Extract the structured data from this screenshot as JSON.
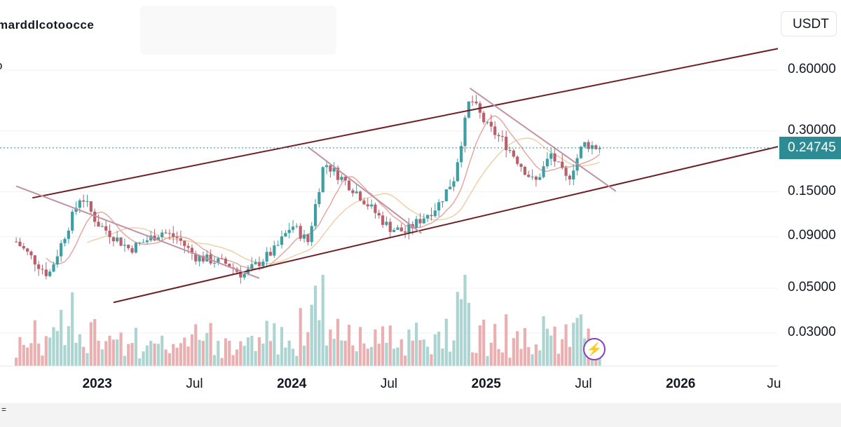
{
  "header": {
    "symbol": "marddlcotoocce",
    "sub_label": "o",
    "currency": "USDT"
  },
  "last_price": "0.24745",
  "y_ticks": [
    "0.60000",
    "0.30000",
    "0.15000",
    "0.09000",
    "0.05000",
    "0.03000"
  ],
  "x_ticks": [
    {
      "label": "2023",
      "year": true
    },
    {
      "label": "Jul",
      "year": false
    },
    {
      "label": "2024",
      "year": true
    },
    {
      "label": "Jul",
      "year": false
    },
    {
      "label": "2025",
      "year": true
    },
    {
      "label": "Jul",
      "year": false
    },
    {
      "label": "2026",
      "year": true
    },
    {
      "label": "Ju",
      "year": false
    }
  ],
  "bottom_label": "=",
  "icons": {
    "flash": "lightning-icon"
  },
  "colors": {
    "up": "#3f9ea3",
    "down": "#b8606b",
    "volume_up": "#a3cfcc",
    "volume_down": "#e8a7a8",
    "channel": "#6e1f24",
    "downtrend": "#c291a2",
    "ma_fast": "#e6a79f",
    "ma_slow": "#f0cfa8",
    "price_line": "#2c8b93"
  },
  "chart_data": {
    "type": "candlestick",
    "scale": "log",
    "quote": "USDT",
    "interval": "weekly",
    "x_range": [
      "2022-08",
      "2026-08"
    ],
    "ylim": [
      0.022,
      0.85
    ],
    "last_price": 0.24745,
    "price_points": [
      {
        "date": "2022-08",
        "value": 0.085
      },
      {
        "date": "2022-10",
        "value": 0.058
      },
      {
        "date": "2022-12",
        "value": 0.145
      },
      {
        "date": "2023-01",
        "value": 0.105
      },
      {
        "date": "2023-03",
        "value": 0.078
      },
      {
        "date": "2023-05",
        "value": 0.095
      },
      {
        "date": "2023-06",
        "value": 0.088
      },
      {
        "date": "2023-07",
        "value": 0.072
      },
      {
        "date": "2023-09",
        "value": 0.066
      },
      {
        "date": "2023-10",
        "value": 0.058
      },
      {
        "date": "2023-12",
        "value": 0.078
      },
      {
        "date": "2024-01",
        "value": 0.103
      },
      {
        "date": "2024-02",
        "value": 0.085
      },
      {
        "date": "2024-03",
        "value": 0.21
      },
      {
        "date": "2024-05",
        "value": 0.15
      },
      {
        "date": "2024-06",
        "value": 0.122
      },
      {
        "date": "2024-07",
        "value": 0.1
      },
      {
        "date": "2024-08",
        "value": 0.095
      },
      {
        "date": "2024-10",
        "value": 0.128
      },
      {
        "date": "2024-11",
        "value": 0.175
      },
      {
        "date": "2024-12",
        "value": 0.44
      },
      {
        "date": "2025-01",
        "value": 0.32
      },
      {
        "date": "2025-02",
        "value": 0.27
      },
      {
        "date": "2025-04",
        "value": 0.165
      },
      {
        "date": "2025-05",
        "value": 0.23
      },
      {
        "date": "2025-06",
        "value": 0.17
      },
      {
        "date": "2025-07",
        "value": 0.26
      },
      {
        "date": "2025-08",
        "value": 0.24745
      }
    ],
    "channel": [
      {
        "name": "upper",
        "points": [
          {
            "date": "2022-09",
            "value": 0.14
          },
          {
            "date": "2026-08",
            "value": 0.795
          }
        ]
      },
      {
        "name": "lower",
        "points": [
          {
            "date": "2023-02",
            "value": 0.0425
          },
          {
            "date": "2026-08",
            "value": 0.262
          }
        ]
      }
    ],
    "downtrend_lines": [
      {
        "points": [
          {
            "date": "2022-08",
            "value": 0.16
          },
          {
            "date": "2023-11",
            "value": 0.056
          }
        ]
      },
      {
        "points": [
          {
            "date": "2024-02",
            "value": 0.25
          },
          {
            "date": "2024-09",
            "value": 0.0935
          }
        ]
      },
      {
        "points": [
          {
            "date": "2024-12",
            "value": 0.488
          },
          {
            "date": "2025-09",
            "value": 0.151
          }
        ]
      }
    ],
    "volume": "relative bars beneath price, largest spike around 2024-12"
  }
}
